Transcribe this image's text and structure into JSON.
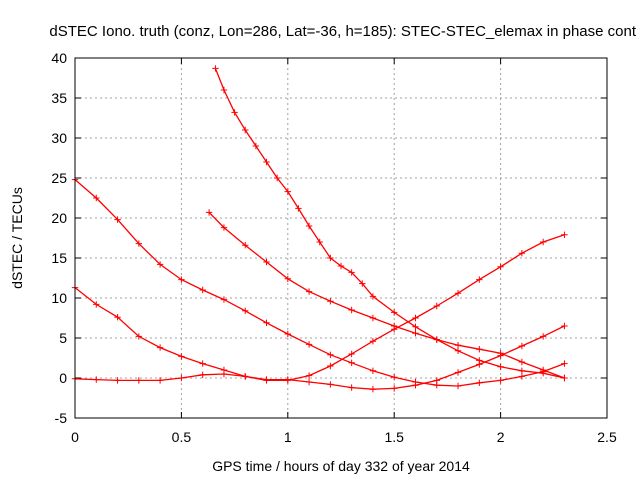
{
  "chart_data": {
    "type": "scatter",
    "title": "dSTEC Iono. truth (conz, Lon=286, Lat=-36, h=185): STEC-STEC_elemax in phase cont",
    "xlabel": "GPS time / hours of day 332 of year 2014",
    "ylabel": "dSTEC  / TECUs",
    "xlim": [
      0,
      2.5
    ],
    "ylim": [
      -5,
      40
    ],
    "xticks": [
      0,
      0.5,
      1,
      1.5,
      2,
      2.5
    ],
    "xtick_labels": [
      "0",
      "0.5",
      "1",
      "1.5",
      "2",
      "2.5"
    ],
    "yticks": [
      -5,
      0,
      5,
      10,
      15,
      20,
      25,
      30,
      35,
      40
    ],
    "ytick_labels": [
      "-5",
      "0",
      "5",
      "10",
      "15",
      "20",
      "25",
      "30",
      "35",
      "40"
    ],
    "grid": true,
    "marker": "+",
    "color": "#ff0000",
    "series": [
      {
        "x": [
          0.0,
          0.1,
          0.2,
          0.3,
          0.4,
          0.5,
          0.6,
          0.7,
          0.8,
          0.9,
          1.0,
          1.1,
          1.2,
          1.3,
          1.4,
          1.5,
          1.6,
          1.7,
          1.8,
          1.9,
          2.0,
          2.1,
          2.2,
          2.3
        ],
        "y": [
          24.8,
          22.5,
          19.8,
          16.8,
          14.2,
          12.3,
          11.0,
          9.8,
          8.4,
          6.9,
          5.5,
          4.2,
          2.9,
          1.9,
          0.9,
          0.1,
          -0.5,
          -0.9,
          -1.0,
          -0.6,
          -0.3,
          0.2,
          0.8,
          1.8
        ]
      },
      {
        "x": [
          0.0,
          0.1,
          0.2,
          0.3,
          0.4,
          0.5,
          0.6,
          0.7,
          0.8,
          0.9,
          1.0,
          1.1,
          1.2,
          1.3,
          1.4,
          1.5,
          1.6,
          1.7,
          1.8,
          1.9,
          2.0,
          2.1,
          2.2,
          2.3
        ],
        "y": [
          11.3,
          9.2,
          7.6,
          5.2,
          3.8,
          2.7,
          1.8,
          1.0,
          0.2,
          -0.2,
          -0.2,
          -0.5,
          -0.8,
          -1.2,
          -1.4,
          -1.3,
          -0.9,
          -0.3,
          0.7,
          1.7,
          2.8,
          4.0,
          5.2,
          6.5
        ]
      },
      {
        "x": [
          0.0,
          0.1,
          0.2,
          0.3,
          0.4,
          0.5,
          0.6,
          0.7,
          0.8,
          0.9,
          1.0,
          1.1,
          1.2,
          1.3,
          1.4,
          1.5,
          1.6,
          1.7,
          1.8,
          1.9,
          2.0,
          2.1,
          2.2,
          2.3
        ],
        "y": [
          -0.1,
          -0.2,
          -0.3,
          -0.3,
          -0.3,
          0.0,
          0.4,
          0.5,
          0.2,
          -0.3,
          -0.3,
          0.3,
          1.5,
          3.0,
          4.6,
          6.1,
          7.5,
          9.0,
          10.6,
          12.3,
          13.9,
          15.6,
          17.0,
          17.9
        ]
      },
      {
        "x": [
          0.66,
          0.7,
          0.75,
          0.8,
          0.85,
          0.9,
          0.95,
          1.0,
          1.05,
          1.1,
          1.15,
          1.2,
          1.25,
          1.3,
          1.35,
          1.4,
          1.5,
          1.6,
          1.7,
          1.8,
          1.9,
          2.0,
          2.1,
          2.2,
          2.3
        ],
        "y": [
          38.7,
          36.0,
          33.2,
          31.0,
          29.0,
          27.0,
          25.0,
          23.3,
          21.2,
          19.0,
          17.0,
          15.0,
          14.0,
          13.2,
          11.8,
          10.2,
          8.2,
          6.4,
          4.8,
          3.4,
          2.2,
          1.4,
          0.9,
          0.6,
          0.0
        ]
      },
      {
        "x": [
          0.63,
          0.7,
          0.8,
          0.9,
          1.0,
          1.1,
          1.2,
          1.3,
          1.4,
          1.5,
          1.6,
          1.7,
          1.8,
          1.9,
          2.0,
          2.1,
          2.2,
          2.3
        ],
        "y": [
          20.7,
          18.8,
          16.6,
          14.5,
          12.4,
          10.8,
          9.6,
          8.5,
          7.5,
          6.5,
          5.6,
          4.8,
          4.1,
          3.6,
          3.1,
          2.0,
          1.0,
          0.0
        ]
      }
    ]
  }
}
